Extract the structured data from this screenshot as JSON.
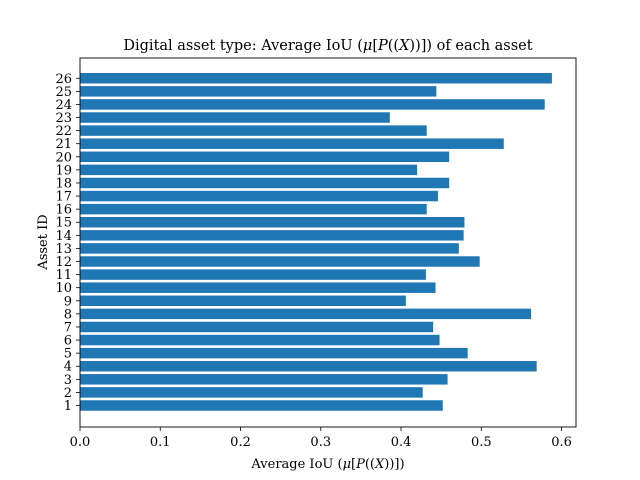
{
  "chart_data": {
    "type": "bar",
    "orientation": "horizontal",
    "title": {
      "prefix": "Digital asset type: Average IoU (",
      "mu": "μ",
      "open_bracket": "[",
      "P": "P",
      "inner": "((",
      "X": "X",
      "close": "))])",
      "suffix": " of each asset"
    },
    "xlabel": {
      "prefix": "Average IoU (",
      "mu": "μ",
      "open_bracket": "[",
      "P": "P",
      "inner": "((",
      "X": "X",
      "close": "))])"
    },
    "ylabel": "Asset ID",
    "categories": [
      "1",
      "2",
      "3",
      "4",
      "5",
      "6",
      "7",
      "8",
      "9",
      "10",
      "11",
      "12",
      "13",
      "14",
      "15",
      "16",
      "17",
      "18",
      "19",
      "20",
      "21",
      "22",
      "23",
      "24",
      "25",
      "26"
    ],
    "values": [
      0.452,
      0.427,
      0.458,
      0.569,
      0.483,
      0.448,
      0.44,
      0.562,
      0.406,
      0.443,
      0.431,
      0.498,
      0.472,
      0.478,
      0.479,
      0.432,
      0.446,
      0.46,
      0.42,
      0.46,
      0.528,
      0.432,
      0.386,
      0.579,
      0.444,
      0.588
    ],
    "xlim": [
      0,
      0.618
    ],
    "xticks": [
      "0.0",
      "0.1",
      "0.2",
      "0.3",
      "0.4",
      "0.5",
      "0.6"
    ],
    "xtick_values": [
      0.0,
      0.1,
      0.2,
      0.3,
      0.4,
      0.5,
      0.6
    ],
    "grid": false,
    "bar_color": "#1f77b4"
  }
}
